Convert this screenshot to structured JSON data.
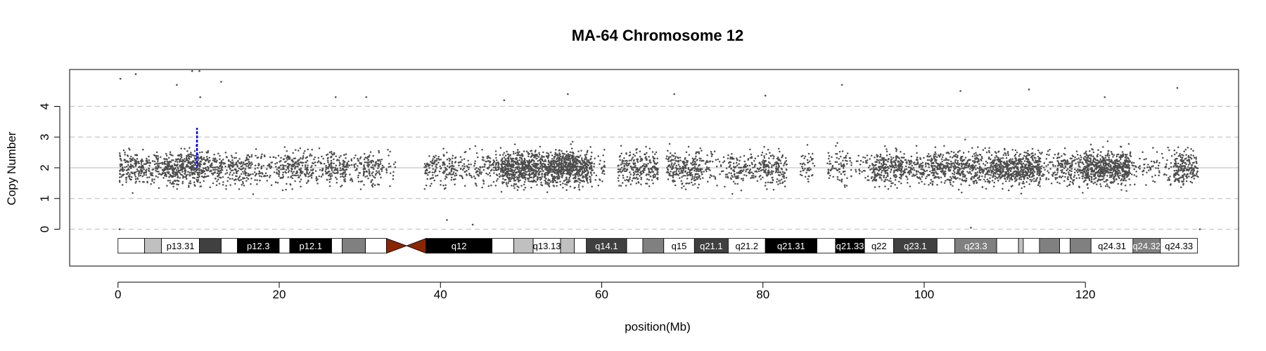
{
  "chart_data": {
    "type": "scatter",
    "title": "MA-64  Chromosome 12",
    "xlabel": "position(Mb)",
    "ylabel": "Copy Number",
    "xlim": [
      -6,
      139
    ],
    "ylim": [
      -1.2,
      5.2
    ],
    "x_ticks": [
      0,
      20,
      40,
      60,
      80,
      100,
      120
    ],
    "y_ticks": [
      0,
      1,
      2,
      3,
      4
    ],
    "grid": "dashed horizontal at integer copy numbers",
    "point_color": "#4d4d4d",
    "segment_color": "#0000ff",
    "segment": {
      "x": [
        9.8,
        9.8
      ],
      "y": [
        2.0,
        3.3
      ]
    },
    "density_profile": [
      {
        "x": [
          0.2,
          3.2
        ],
        "level": 1.0
      },
      {
        "x": [
          3.2,
          5.6
        ],
        "level": 0.7
      },
      {
        "x": [
          5.6,
          10.2
        ],
        "level": 1.5
      },
      {
        "x": [
          10.2,
          12.8
        ],
        "level": 0.9
      },
      {
        "x": [
          12.8,
          14.8
        ],
        "level": 0.8
      },
      {
        "x": [
          14.8,
          18.0
        ],
        "level": 0.7
      },
      {
        "x": [
          18.0,
          20.0
        ],
        "level": 0.4
      },
      {
        "x": [
          20.0,
          23.5
        ],
        "level": 0.9
      },
      {
        "x": [
          23.5,
          26.0
        ],
        "level": 0.5
      },
      {
        "x": [
          26.0,
          28.5
        ],
        "level": 0.9
      },
      {
        "x": [
          28.5,
          30.5
        ],
        "level": 0.4
      },
      {
        "x": [
          30.5,
          32.8
        ],
        "level": 0.8
      },
      {
        "x": [
          32.8,
          34.5
        ],
        "level": 0.2
      },
      {
        "x": [
          38.0,
          42.0
        ],
        "level": 0.7
      },
      {
        "x": [
          42.0,
          44.5
        ],
        "level": 0.4
      },
      {
        "x": [
          44.5,
          47.5
        ],
        "level": 0.6
      },
      {
        "x": [
          47.5,
          54.0
        ],
        "level": 1.9
      },
      {
        "x": [
          54.0,
          58.8
        ],
        "level": 2.3
      },
      {
        "x": [
          58.8,
          60.5
        ],
        "level": 0.3
      },
      {
        "x": [
          62.0,
          67.0
        ],
        "level": 0.9
      },
      {
        "x": [
          68.0,
          72.5
        ],
        "level": 1.0
      },
      {
        "x": [
          72.5,
          75.5
        ],
        "level": 0.3
      },
      {
        "x": [
          75.5,
          80.0
        ],
        "level": 0.6
      },
      {
        "x": [
          80.0,
          83.0
        ],
        "level": 0.9
      },
      {
        "x": [
          84.5,
          86.5
        ],
        "level": 0.4
      },
      {
        "x": [
          88.0,
          91.0
        ],
        "level": 0.5
      },
      {
        "x": [
          91.5,
          93.5
        ],
        "level": 0.3
      },
      {
        "x": [
          93.5,
          98.5
        ],
        "level": 1.1
      },
      {
        "x": [
          98.5,
          101.0
        ],
        "level": 0.7
      },
      {
        "x": [
          101.0,
          106.0
        ],
        "level": 1.2
      },
      {
        "x": [
          106.0,
          108.5
        ],
        "level": 1.0
      },
      {
        "x": [
          108.5,
          114.5
        ],
        "level": 1.7
      },
      {
        "x": [
          114.5,
          116.5
        ],
        "level": 0.4
      },
      {
        "x": [
          116.5,
          120.0
        ],
        "level": 0.9
      },
      {
        "x": [
          120.0,
          125.5
        ],
        "level": 1.9
      },
      {
        "x": [
          125.5,
          128.0
        ],
        "level": 0.3
      },
      {
        "x": [
          128.0,
          131.0
        ],
        "level": 0.3
      },
      {
        "x": [
          131.0,
          134.0
        ],
        "level": 1.2
      }
    ],
    "outliers": [
      {
        "x": 0.3,
        "y": 4.9
      },
      {
        "x": 2.2,
        "y": 5.05
      },
      {
        "x": 9.2,
        "y": 5.15
      },
      {
        "x": 10.1,
        "y": 5.15
      },
      {
        "x": 10.2,
        "y": 4.3
      },
      {
        "x": 12.8,
        "y": 4.8
      },
      {
        "x": 7.3,
        "y": 4.7
      },
      {
        "x": 27.0,
        "y": 4.3
      },
      {
        "x": 30.8,
        "y": 4.3
      },
      {
        "x": 55.8,
        "y": 4.4
      },
      {
        "x": 69.0,
        "y": 4.4
      },
      {
        "x": 80.3,
        "y": 4.35
      },
      {
        "x": 89.8,
        "y": 4.7
      },
      {
        "x": 104.5,
        "y": 4.5
      },
      {
        "x": 113.0,
        "y": 4.55
      },
      {
        "x": 131.4,
        "y": 4.6
      },
      {
        "x": 122.4,
        "y": 4.3
      },
      {
        "x": 47.9,
        "y": 4.2
      },
      {
        "x": 0.2,
        "y": 0.0
      },
      {
        "x": 44.0,
        "y": 0.15
      },
      {
        "x": 105.8,
        "y": 0.05
      },
      {
        "x": 40.8,
        "y": 0.3
      },
      {
        "x": 134.2,
        "y": 0.0
      }
    ],
    "ideogram": {
      "y_top": -0.3,
      "y_bottom": -0.78,
      "bands": [
        {
          "name": "",
          "start": 0.0,
          "end": 3.3,
          "fill": "#ffffff"
        },
        {
          "name": "",
          "start": 3.3,
          "end": 5.4,
          "fill": "#c0c0c0"
        },
        {
          "name": "p13.31",
          "start": 5.4,
          "end": 10.1,
          "fill": "#ffffff"
        },
        {
          "name": "",
          "start": 10.1,
          "end": 12.8,
          "fill": "#404040"
        },
        {
          "name": "",
          "start": 12.8,
          "end": 14.8,
          "fill": "#ffffff"
        },
        {
          "name": "p12.3",
          "start": 14.8,
          "end": 20.0,
          "fill": "#000000"
        },
        {
          "name": "",
          "start": 20.0,
          "end": 21.3,
          "fill": "#ffffff"
        },
        {
          "name": "p12.1",
          "start": 21.3,
          "end": 26.5,
          "fill": "#000000"
        },
        {
          "name": "",
          "start": 26.5,
          "end": 27.8,
          "fill": "#ffffff"
        },
        {
          "name": "",
          "start": 27.8,
          "end": 30.7,
          "fill": "#808080"
        },
        {
          "name": "",
          "start": 30.7,
          "end": 33.3,
          "fill": "#ffffff"
        },
        {
          "name": "q12",
          "start": 38.2,
          "end": 46.4,
          "fill": "#000000"
        },
        {
          "name": "",
          "start": 46.4,
          "end": 49.1,
          "fill": "#ffffff"
        },
        {
          "name": "",
          "start": 49.1,
          "end": 51.5,
          "fill": "#c0c0c0"
        },
        {
          "name": "q13.13",
          "start": 51.5,
          "end": 54.9,
          "fill": "#ffffff"
        },
        {
          "name": "",
          "start": 54.9,
          "end": 56.6,
          "fill": "#c0c0c0"
        },
        {
          "name": "",
          "start": 56.6,
          "end": 58.1,
          "fill": "#ffffff"
        },
        {
          "name": "q14.1",
          "start": 58.1,
          "end": 63.1,
          "fill": "#404040"
        },
        {
          "name": "",
          "start": 63.1,
          "end": 65.1,
          "fill": "#ffffff"
        },
        {
          "name": "",
          "start": 65.1,
          "end": 67.7,
          "fill": "#808080"
        },
        {
          "name": "q15",
          "start": 67.7,
          "end": 71.5,
          "fill": "#ffffff"
        },
        {
          "name": "q21.1",
          "start": 71.5,
          "end": 75.7,
          "fill": "#404040"
        },
        {
          "name": "q21.2",
          "start": 75.7,
          "end": 80.3,
          "fill": "#ffffff"
        },
        {
          "name": "q21.31",
          "start": 80.3,
          "end": 86.7,
          "fill": "#000000"
        },
        {
          "name": "",
          "start": 86.7,
          "end": 89.0,
          "fill": "#ffffff"
        },
        {
          "name": "q21.33",
          "start": 89.0,
          "end": 92.6,
          "fill": "#000000"
        },
        {
          "name": "q22",
          "start": 92.6,
          "end": 96.2,
          "fill": "#ffffff"
        },
        {
          "name": "q23.1",
          "start": 96.2,
          "end": 101.6,
          "fill": "#404040"
        },
        {
          "name": "",
          "start": 101.6,
          "end": 103.8,
          "fill": "#ffffff"
        },
        {
          "name": "q23.3",
          "start": 103.8,
          "end": 109.0,
          "fill": "#808080"
        },
        {
          "name": "",
          "start": 109.0,
          "end": 111.7,
          "fill": "#ffffff"
        },
        {
          "name": "",
          "start": 111.7,
          "end": 112.3,
          "fill": "#c0c0c0"
        },
        {
          "name": "",
          "start": 112.3,
          "end": 114.3,
          "fill": "#ffffff"
        },
        {
          "name": "",
          "start": 114.3,
          "end": 116.8,
          "fill": "#808080"
        },
        {
          "name": "",
          "start": 116.8,
          "end": 118.1,
          "fill": "#ffffff"
        },
        {
          "name": "",
          "start": 118.1,
          "end": 120.7,
          "fill": "#808080"
        },
        {
          "name": "q24.31",
          "start": 120.7,
          "end": 125.9,
          "fill": "#ffffff"
        },
        {
          "name": "q24.32",
          "start": 125.9,
          "end": 129.3,
          "fill": "#808080"
        },
        {
          "name": "q24.33",
          "start": 129.3,
          "end": 133.9,
          "fill": "#ffffff"
        }
      ],
      "centromere": {
        "start": 33.3,
        "mid": 35.8,
        "end": 38.2,
        "fill": "#8b2500"
      }
    }
  }
}
